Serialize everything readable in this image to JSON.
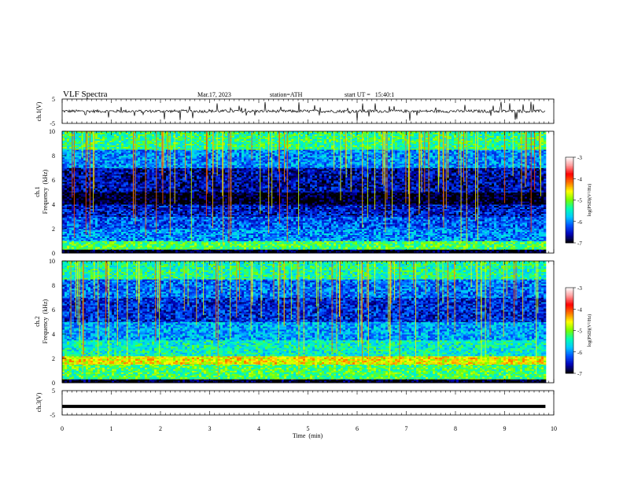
{
  "header": {
    "title": "VLF Spectra",
    "date": "Mar.17, 2023",
    "station": "station=ATH",
    "start_ut": "start UT =   15:40:1"
  },
  "chart_data": [
    {
      "type": "line",
      "panel": "ch1-waveform",
      "ylabel": "ch.1(V)",
      "yticks": [
        "5",
        "-5"
      ],
      "ylim": [
        -5,
        5
      ],
      "xlim": [
        0,
        10
      ],
      "x_data_end": 9.83,
      "baseline": 0,
      "series": []
    },
    {
      "type": "heatmap",
      "panel": "ch1-spectrogram",
      "ylabel": "ch.1\nFrequency  (kHz)",
      "ylabel_channel": "ch.1",
      "ylabel_freq": "Frequency  (kHz)",
      "yticks": [
        "0",
        "2",
        "4",
        "6",
        "8",
        "10"
      ],
      "ylim": [
        0,
        10
      ],
      "xlim": [
        0,
        10
      ],
      "x_data_end": 9.83,
      "bands": [
        {
          "f_from": 0,
          "f_to": 0.3,
          "psd": -7
        },
        {
          "f_from": 0.3,
          "f_to": 1.0,
          "psd": -5.2
        },
        {
          "f_from": 1.0,
          "f_to": 2.0,
          "psd": -6.0
        },
        {
          "f_from": 2.0,
          "f_to": 3.0,
          "psd": -6.2
        },
        {
          "f_from": 3.0,
          "f_to": 4.0,
          "psd": -6.5
        },
        {
          "f_from": 4.0,
          "f_to": 5.0,
          "psd": -7
        },
        {
          "f_from": 5.0,
          "f_to": 7.0,
          "psd": -6.6
        },
        {
          "f_from": 7.0,
          "f_to": 8.5,
          "psd": -6.0
        },
        {
          "f_from": 8.5,
          "f_to": 10.0,
          "psd": -5.3
        }
      ],
      "colorbar": {
        "label": "log(PSD)(V²/Hz)",
        "ticks": [
          "-3",
          "-4",
          "-5",
          "-6",
          "-7"
        ],
        "range": [
          -7,
          -3
        ]
      }
    },
    {
      "type": "heatmap",
      "panel": "ch2-spectrogram",
      "ylabel": "ch.2\nFrequency  (kHz)",
      "ylabel_channel": "ch.2",
      "ylabel_freq": "Frequency  (kHz)",
      "yticks": [
        "0",
        "2",
        "4",
        "6",
        "8",
        "10"
      ],
      "ylim": [
        0,
        10
      ],
      "xlim": [
        0,
        10
      ],
      "x_data_end": 9.83,
      "bands": [
        {
          "f_from": 0,
          "f_to": 0.3,
          "psd": -7
        },
        {
          "f_from": 0.3,
          "f_to": 1.5,
          "psd": -5.2
        },
        {
          "f_from": 1.5,
          "f_to": 2.2,
          "psd": -4.6
        },
        {
          "f_from": 2.2,
          "f_to": 3.5,
          "psd": -5.5
        },
        {
          "f_from": 3.5,
          "f_to": 5.0,
          "psd": -5.9
        },
        {
          "f_from": 5.0,
          "f_to": 7.0,
          "psd": -6.4
        },
        {
          "f_from": 7.0,
          "f_to": 8.5,
          "psd": -6.1
        },
        {
          "f_from": 8.5,
          "f_to": 10.0,
          "psd": -5.4
        }
      ],
      "colorbar": {
        "label": "log(PSD)(V²/Hz)",
        "ticks": [
          "-3",
          "-4",
          "-5",
          "-6",
          "-7"
        ],
        "range": [
          -7,
          -3
        ]
      }
    },
    {
      "type": "line",
      "panel": "ch3-waveform",
      "ylabel": "ch.3(V)",
      "yticks": [
        "5",
        "-5"
      ],
      "ylim": [
        -5,
        5
      ],
      "xlim": [
        0,
        10
      ],
      "x_data_end": 9.83,
      "baseline": -1.5,
      "series": []
    }
  ],
  "xaxis": {
    "label": "Time  (min)",
    "ticks": [
      "0",
      "1",
      "2",
      "3",
      "4",
      "5",
      "6",
      "7",
      "8",
      "9",
      "10"
    ]
  },
  "colors": {
    "colormap": [
      "#000000",
      "#0000b4",
      "#0050ff",
      "#00c8ff",
      "#00ffb4",
      "#78ff00",
      "#ffff00",
      "#ff7800",
      "#ff0000",
      "#ff9999",
      "#ffffff"
    ]
  }
}
